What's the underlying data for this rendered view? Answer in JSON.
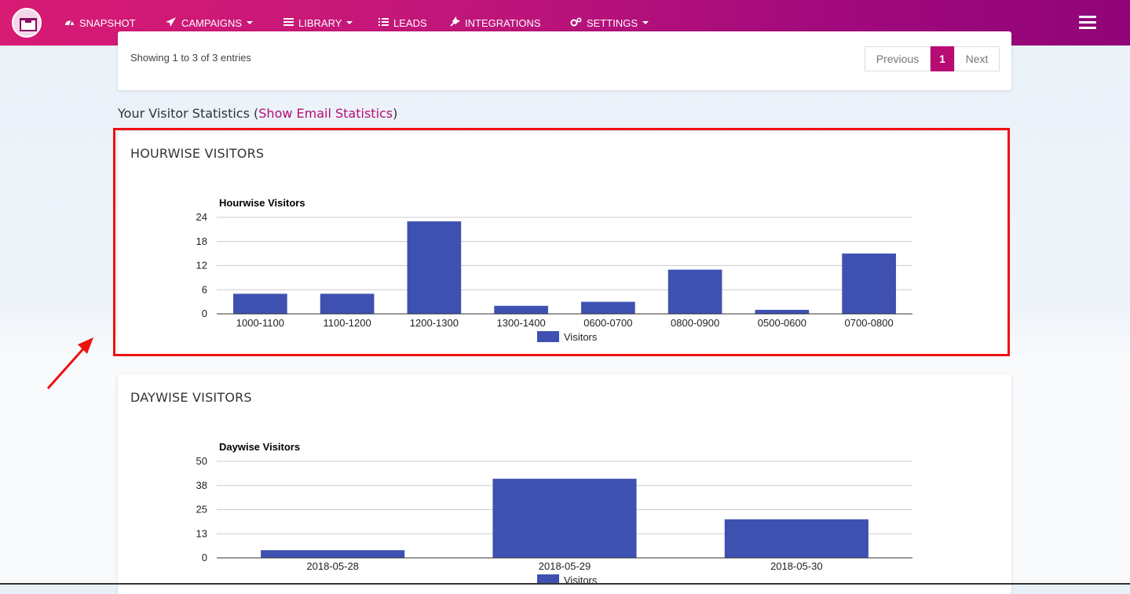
{
  "nav": {
    "items": [
      {
        "label": "SNAPSHOT",
        "icon": "dashboard-icon",
        "caret": false
      },
      {
        "label": "CAMPAIGNS",
        "icon": "paper-plane-icon",
        "caret": true
      },
      {
        "label": "LIBRARY",
        "icon": "library-icon",
        "caret": true
      },
      {
        "label": "LEADS",
        "icon": "list-icon",
        "caret": false
      },
      {
        "label": "INTEGRATIONS",
        "icon": "plug-icon",
        "caret": false
      },
      {
        "label": "SETTINGS",
        "icon": "cogs-icon",
        "caret": true
      }
    ],
    "menu_icon": "hamburger-menu-icon"
  },
  "table_footer": {
    "entries_text": "Showing 1 to 3 of 3 entries",
    "pagination": {
      "previous": "Previous",
      "current": "1",
      "next": "Next"
    }
  },
  "stats_header": {
    "prefix": "Your Visitor Statistics (",
    "link": "Show Email Statistics",
    "suffix": ")"
  },
  "colors": {
    "bar": "#3e51b0",
    "accent": "#b80b74",
    "highlight": "#ee1111"
  },
  "chart_data": [
    {
      "type": "bar",
      "heading": "HOURWISE VISITORS",
      "title": "Hourwise Visitors",
      "categories": [
        "1000-1100",
        "1100-1200",
        "1200-1300",
        "1300-1400",
        "0600-0700",
        "0800-0900",
        "0500-0600",
        "0700-0800"
      ],
      "series": [
        {
          "name": "Visitors",
          "values": [
            5,
            5,
            23,
            2,
            3,
            11,
            1,
            15
          ]
        }
      ],
      "yticks": [
        "0",
        "6",
        "12",
        "18",
        "24"
      ],
      "ylim": [
        0,
        24
      ],
      "grid": true,
      "legend": "bottom"
    },
    {
      "type": "bar",
      "heading": "DAYWISE VISITORS",
      "title": "Daywise Visitors",
      "categories": [
        "2018-05-28",
        "2018-05-29",
        "2018-05-30"
      ],
      "series": [
        {
          "name": "Visitors",
          "values": [
            4,
            41,
            20
          ]
        }
      ],
      "yticks": [
        "0",
        "13",
        "25",
        "38",
        "50"
      ],
      "ylim": [
        0,
        50
      ],
      "grid": true,
      "legend": "bottom"
    }
  ]
}
